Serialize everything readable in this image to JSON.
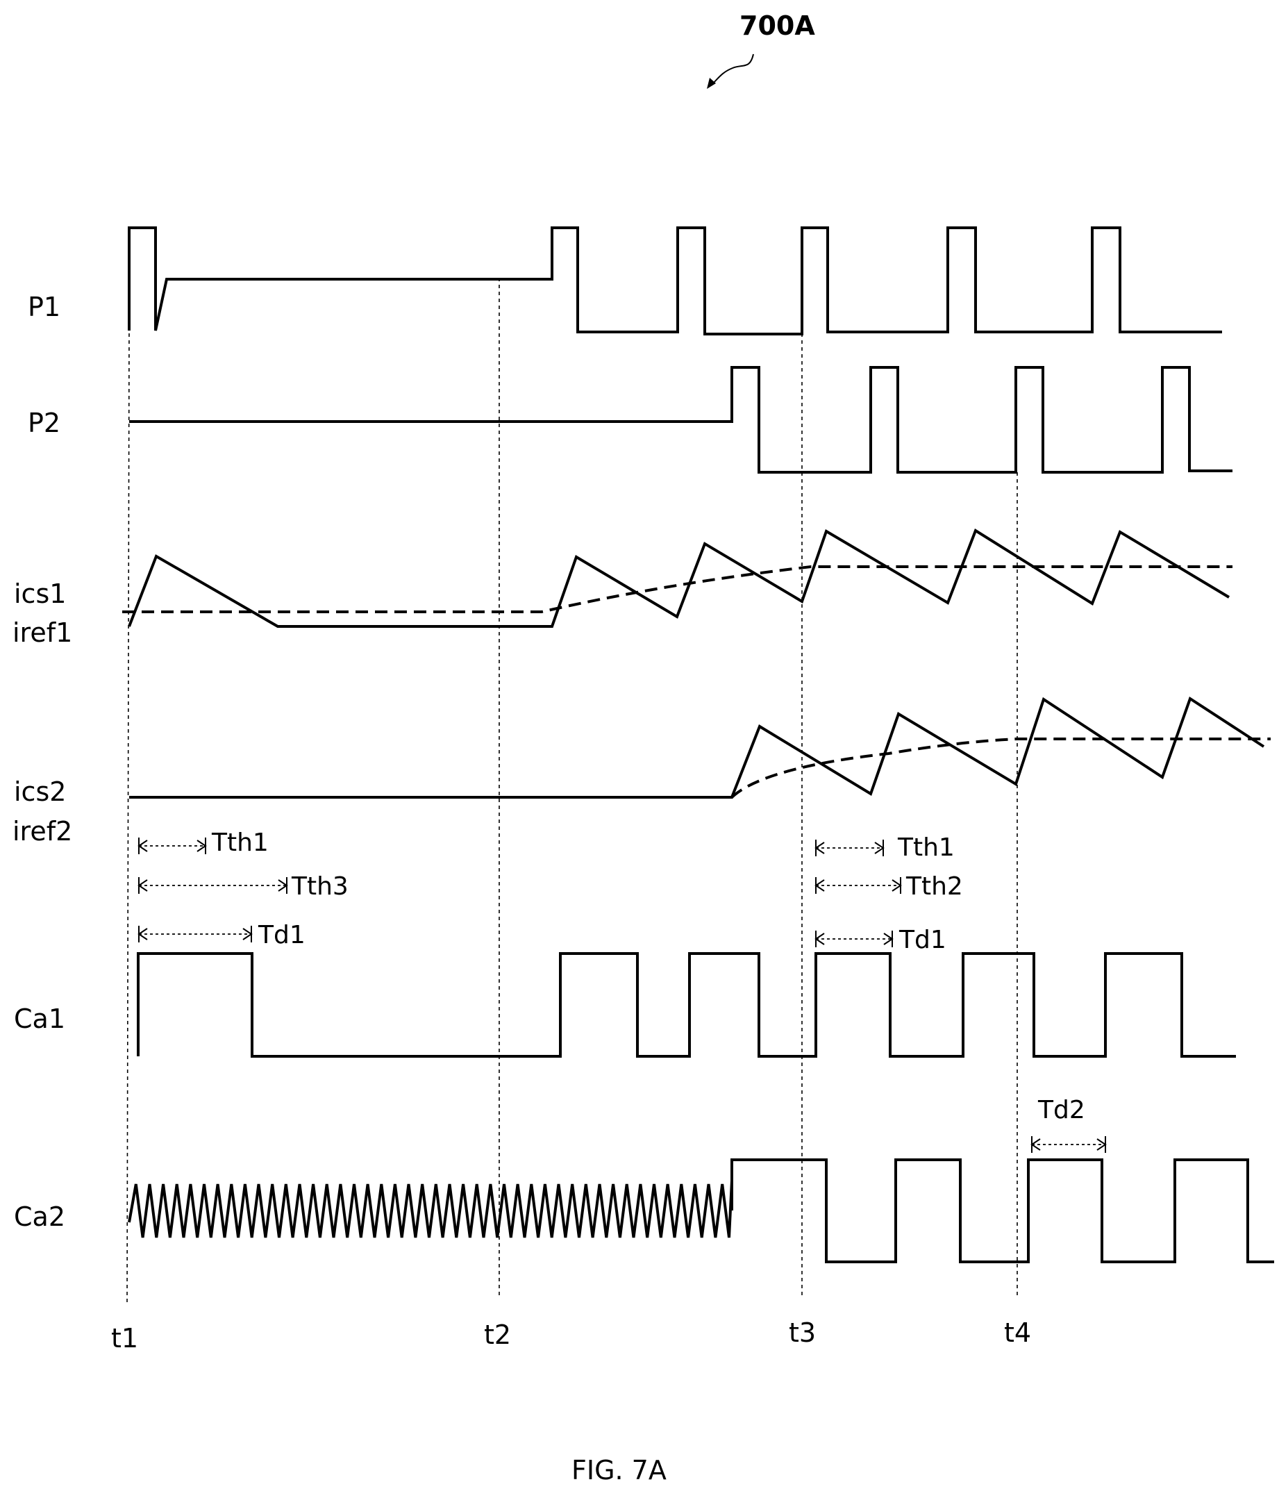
{
  "figure": {
    "reference": "700A",
    "caption": "FIG. 7A"
  },
  "signals": [
    {
      "id": "P1",
      "label": "P1"
    },
    {
      "id": "P2",
      "label": "P2"
    },
    {
      "id": "ics1",
      "label": "ics1"
    },
    {
      "id": "iref1",
      "label": "iref1"
    },
    {
      "id": "ics2",
      "label": "ics2"
    },
    {
      "id": "iref2",
      "label": "iref2"
    },
    {
      "id": "Ca1",
      "label": "Ca1"
    },
    {
      "id": "Ca2",
      "label": "Ca2"
    }
  ],
  "time_markers": [
    "t1",
    "t2",
    "t3",
    "t4"
  ],
  "intervals": {
    "tth1_a": "Tth1",
    "tth3": "Tth3",
    "td1_a": "Td1",
    "tth1_b": "Tth1",
    "tth2": "Tth2",
    "td1_b": "Td1",
    "td2": "Td2"
  }
}
